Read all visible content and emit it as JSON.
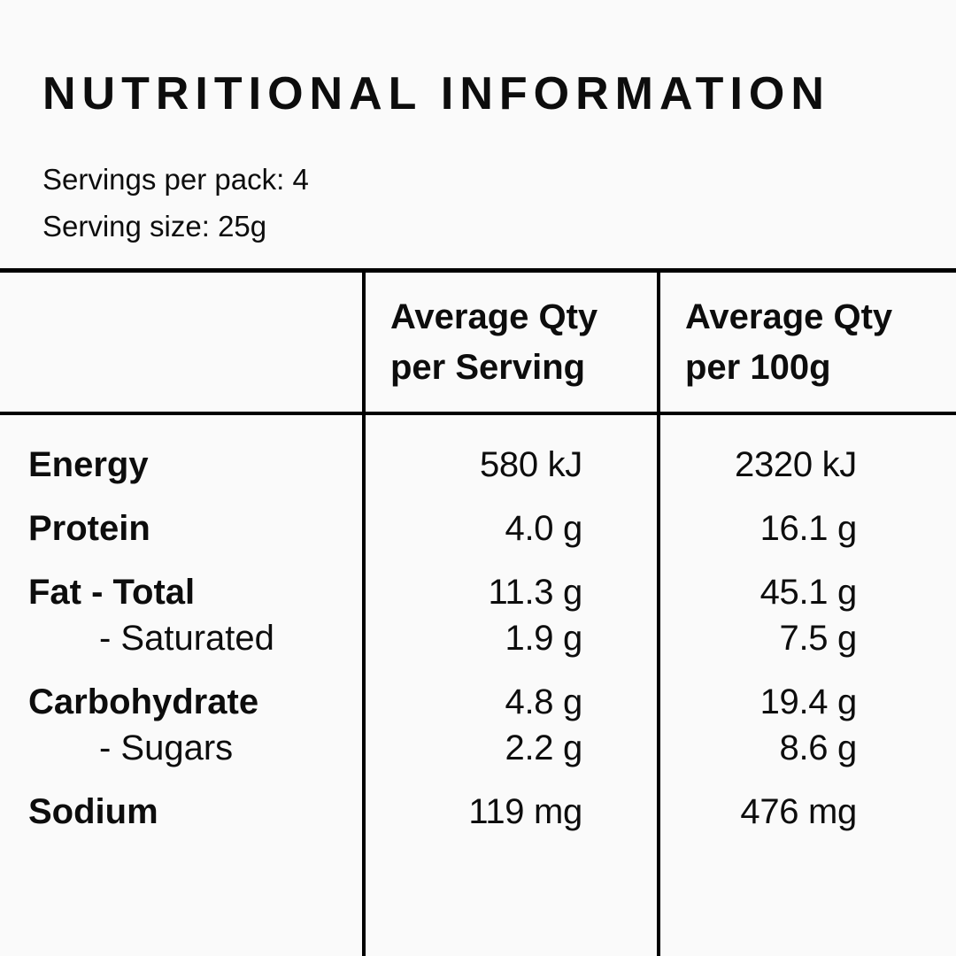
{
  "title": "NUTRITIONAL INFORMATION",
  "serving_info": {
    "servings_per_pack": "Servings per pack: 4",
    "serving_size": "Serving size: 25g"
  },
  "table": {
    "header": {
      "per_serving_lines": [
        "Average Qty",
        "per Serving"
      ],
      "per_100g_lines": [
        "Average Qty",
        "per 100g"
      ]
    },
    "rows": [
      {
        "label": "Energy",
        "per_serving": "580 kJ",
        "per_100g": "2320 kJ"
      },
      {
        "label": "Protein",
        "per_serving": "4.0 g",
        "per_100g": "16.1 g"
      },
      {
        "label": "Fat - Total",
        "per_serving": "11.3 g",
        "per_100g": "45.1 g"
      },
      {
        "label": "- Saturated",
        "per_serving": "1.9 g",
        "per_100g": "7.5 g"
      },
      {
        "label": "Carbohydrate",
        "per_serving": "4.8 g",
        "per_100g": "19.4 g"
      },
      {
        "label": "- Sugars",
        "per_serving": "2.2 g",
        "per_100g": "8.6 g"
      },
      {
        "label": "Sodium",
        "per_serving": "119 mg",
        "per_100g": "476 mg"
      }
    ]
  },
  "colors": {
    "background": "#FAFAFA",
    "text": "#0D0D0D",
    "line": "#000000"
  }
}
